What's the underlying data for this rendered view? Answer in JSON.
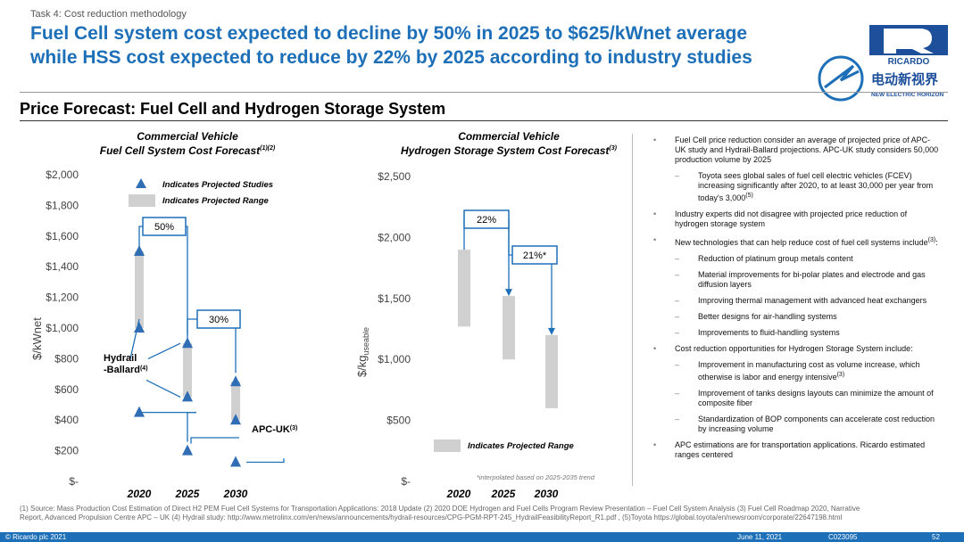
{
  "header": {
    "task_label": "Task 4: Cost reduction methodology",
    "headline_line1": "Fuel Cell system cost expected to decline by 50% in 2025 to $625/kWnet average",
    "headline_line2": "while HSS cost expected to reduce by 22% by 2025 according to industry studies"
  },
  "logo": {
    "brand": "RICARDO",
    "cn_text": "电动新视界",
    "en_text": "NEW ELECTRIC HORIZON"
  },
  "section_title": "Price Forecast: Fuel Cell and Hydrogen Storage System",
  "colors": {
    "accent": "#1d6fb8",
    "range": "#d0d0d0",
    "marker": "#2f6db5"
  },
  "chart_data": [
    {
      "type": "scatter",
      "title_line1": "Commercial Vehicle",
      "title_line2": "Fuel Cell System Cost Forecast",
      "title_sup": "(1)(2)",
      "ylabel": "$/kWnet",
      "categories": [
        "2020",
        "2025",
        "2030"
      ],
      "yticks": [
        "$2,000",
        "$1,800",
        "$1,600",
        "$1,400",
        "$1,200",
        "$1,000",
        "$800",
        "$600",
        "$400",
        "$200",
        "$-"
      ],
      "ylim": [
        0,
        2000
      ],
      "legend": {
        "marker_label": "Indicates Projected Studies",
        "range_label": "Indicates Projected Range"
      },
      "projected_ranges": [
        {
          "x": "2020",
          "low": 1000,
          "high": 1500
        },
        {
          "x": "2025",
          "low": 550,
          "high": 900
        },
        {
          "x": "2030",
          "low": 400,
          "high": 650
        }
      ],
      "points": [
        {
          "x": "2020",
          "y": 1500
        },
        {
          "x": "2020",
          "y": 1000
        },
        {
          "x": "2020",
          "y": 450
        },
        {
          "x": "2025",
          "y": 900
        },
        {
          "x": "2025",
          "y": 550
        },
        {
          "x": "2025",
          "y": 200
        },
        {
          "x": "2030",
          "y": 650
        },
        {
          "x": "2030",
          "y": 400
        },
        {
          "x": "2030",
          "y": 125
        }
      ],
      "annotations": {
        "pct1": "50%",
        "pct2": "30%",
        "hydrail_a": "Hydrail",
        "hydrail_b": "-Ballard",
        "hydrail_sup": "(4)",
        "apc": "APC-UK",
        "apc_sup": "(3)"
      }
    },
    {
      "type": "bar",
      "title_line1": "Commercial Vehicle",
      "title_line2": "Hydrogen Storage System Cost Forecast",
      "title_sup": "(3)",
      "ylabel_main": "$/kg",
      "ylabel_sub": "useable",
      "categories": [
        "2020",
        "2025",
        "2030"
      ],
      "yticks": [
        "$2,500",
        "$2,000",
        "$1,500",
        "$1,000",
        "$500",
        "$-"
      ],
      "ylim": [
        0,
        2500
      ],
      "projected_ranges": [
        {
          "x": "2020",
          "low": 1270,
          "high": 1900
        },
        {
          "x": "2025",
          "low": 1000,
          "high": 1520
        },
        {
          "x": "2030",
          "low": 600,
          "high": 1200
        }
      ],
      "legend": {
        "range_label": "Indicates Projected Range"
      },
      "annotations": {
        "pct1": "22%",
        "pct2": "21%*",
        "note": "*interpolated based on 2025-2035 trend"
      }
    }
  ],
  "bullets": [
    {
      "level": 1,
      "text": "Fuel Cell price reduction consider an average of projected price of APC-UK study and Hydrail-Ballard projections. APC-UK study considers 50,000 production volume by 2025"
    },
    {
      "level": 2,
      "text": "Toyota sees global sales of fuel cell electric vehicles (FCEV) increasing significantly after 2020, to at least 30,000 per year from today's 3,000",
      "sup": "(5)"
    },
    {
      "level": 1,
      "text": "Industry experts did not disagree with projected price reduction of hydrogen storage system"
    },
    {
      "level": 1,
      "text": "New technologies that can help reduce cost of fuel cell systems include",
      "sup": "(3)",
      "tail": ":"
    },
    {
      "level": 2,
      "text": "Reduction of platinum group metals content"
    },
    {
      "level": 2,
      "text": "Material improvements for bi-polar plates and electrode and gas diffusion layers"
    },
    {
      "level": 2,
      "text": "Improving thermal management with advanced heat exchangers"
    },
    {
      "level": 2,
      "text": "Better designs for air-handling systems"
    },
    {
      "level": 2,
      "text": "Improvements to fluid-handling systems"
    },
    {
      "level": 1,
      "text": "Cost reduction opportunities for Hydrogen Storage System include:"
    },
    {
      "level": 2,
      "text": "Improvement in manufacturing cost as volume increase, which otherwise is labor and energy intensive",
      "sup": "(3)"
    },
    {
      "level": 2,
      "text": "Improvement of tanks designs layouts can minimize the amount of composite fiber"
    },
    {
      "level": 2,
      "text": "Standardization of BOP components can accelerate cost reduction by increasing volume"
    },
    {
      "level": 1,
      "text": "APC estimations are for transportation applications. Ricardo estimated ranges centered"
    }
  ],
  "footnote": "(1)  Source: Mass Production Cost Estimation of Direct H2 PEM Fuel Cell Systems for Transportation Applications: 2018 Update (2) 2020 DOE Hydrogen and Fuel Cells Program Review Presentation – Fuel Cell System Analysis (3) Fuel Cell Roadmap 2020, Narrative Report, Advanced Propulsion Centre APC – UK (4) Hydrail study: http://www.metrolinx.com/en/news/announcements/hydrail-resources/CPG-PGM-RPT-245_HydrailFeasibilityReport_R1.pdf , (5)Toyota https://global.toyota/en/newsroom/corporate/22647198.html",
  "footer": {
    "copyright": "© Ricardo plc 2021",
    "date": "June 11,  2021",
    "code": "C023095",
    "page": "52"
  }
}
